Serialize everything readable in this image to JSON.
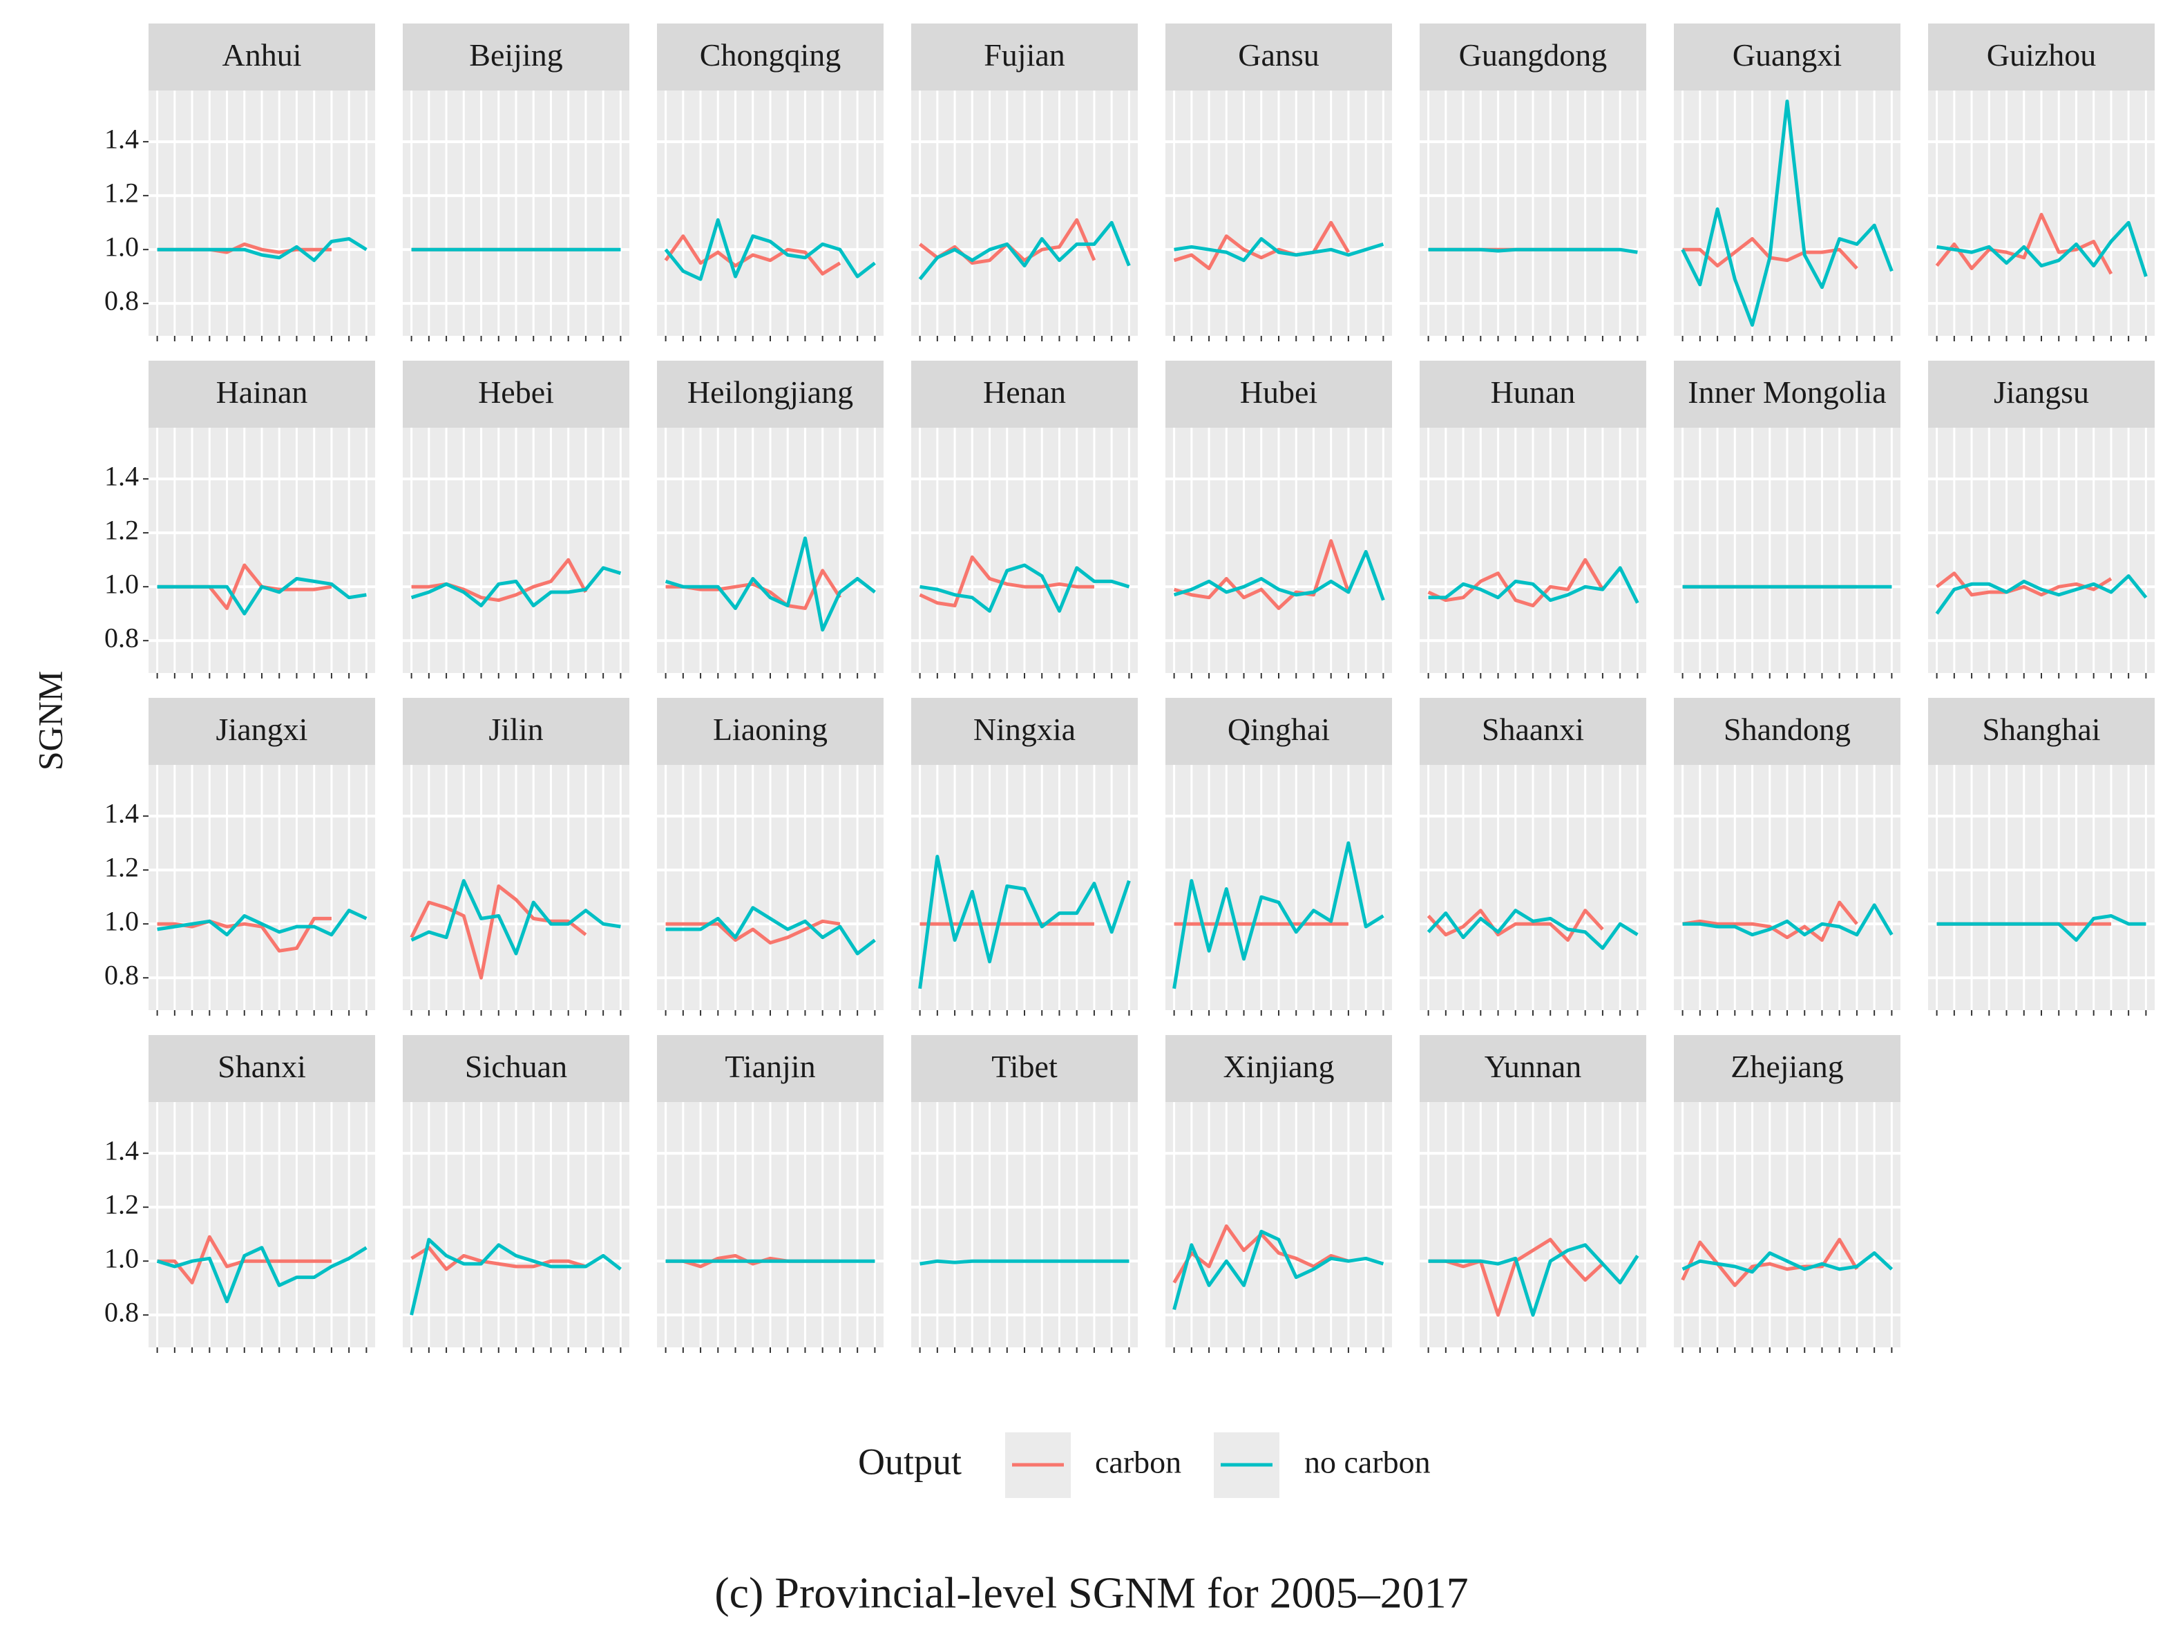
{
  "chart_data": {
    "type": "line",
    "ylabel": "SGNM",
    "legend_title": "Output",
    "caption": "(c) Provincial-level SGNM for 2005–2017",
    "x": [
      1,
      2,
      3,
      4,
      5,
      6,
      7,
      8,
      9,
      10,
      11,
      12,
      13
    ],
    "xlim": [
      0.5,
      13.5
    ],
    "xticks": [
      1,
      2,
      3,
      4,
      5,
      6,
      7,
      8,
      9,
      10,
      11,
      12,
      13
    ],
    "ylim": [
      0.68,
      1.59
    ],
    "yticks": [
      0.8,
      {
        "value": 1,
        "label": "1.0"
      },
      1.2,
      1.4
    ],
    "grid": true,
    "series": [
      {
        "name": "carbon",
        "color": "#F8766D"
      },
      {
        "name": "no carbon",
        "color": "#00BFC4"
      }
    ],
    "panels": [
      {
        "title": "Anhui",
        "values": [
          [
            1,
            1,
            1,
            1,
            0.99,
            1.02,
            1.0,
            0.99,
            1.0,
            1.0,
            1.0,
            null,
            null
          ],
          [
            1,
            1,
            1,
            1,
            1,
            1,
            0.98,
            0.97,
            1.01,
            0.96,
            1.03,
            1.04,
            1.0
          ]
        ]
      },
      {
        "title": "Beijing",
        "values": [
          [
            1,
            1,
            1,
            1,
            1,
            1,
            1,
            1,
            1,
            1,
            1,
            null,
            null
          ],
          [
            1,
            1,
            1,
            1,
            1,
            1,
            1,
            1,
            1,
            1,
            1,
            1,
            1
          ]
        ]
      },
      {
        "title": "Chongqing",
        "values": [
          [
            0.96,
            1.05,
            0.95,
            0.99,
            0.94,
            0.98,
            0.96,
            1.0,
            0.99,
            0.91,
            0.95,
            null,
            null
          ],
          [
            1.0,
            0.92,
            0.89,
            1.11,
            0.9,
            1.05,
            1.03,
            0.98,
            0.97,
            1.02,
            1.0,
            0.9,
            0.95
          ]
        ]
      },
      {
        "title": "Fujian",
        "values": [
          [
            1.02,
            0.97,
            1.01,
            0.95,
            0.96,
            1.02,
            0.96,
            1.0,
            1.01,
            1.11,
            0.96,
            null,
            null
          ],
          [
            0.89,
            0.97,
            1.0,
            0.96,
            1.0,
            1.02,
            0.94,
            1.04,
            0.96,
            1.02,
            1.02,
            1.1,
            0.94
          ]
        ]
      },
      {
        "title": "Gansu",
        "values": [
          [
            0.96,
            0.98,
            0.93,
            1.05,
            1.0,
            0.97,
            1.0,
            0.98,
            0.99,
            1.1,
            0.99,
            null,
            null
          ],
          [
            1.0,
            1.01,
            1.0,
            0.99,
            0.96,
            1.04,
            0.99,
            0.98,
            0.99,
            1.0,
            0.98,
            1.0,
            1.02
          ]
        ]
      },
      {
        "title": "Guangdong",
        "values": [
          [
            1,
            1,
            1,
            1,
            1,
            1,
            1,
            1,
            1,
            1,
            1,
            null,
            null
          ],
          [
            1,
            1,
            1,
            1,
            0.995,
            1,
            1,
            1,
            1,
            1,
            1,
            1,
            0.99
          ]
        ]
      },
      {
        "title": "Guangxi",
        "values": [
          [
            1.0,
            1.0,
            0.94,
            0.99,
            1.04,
            0.97,
            0.96,
            0.99,
            0.99,
            1.0,
            0.93,
            null,
            null
          ],
          [
            1.0,
            0.87,
            1.15,
            0.89,
            0.72,
            0.97,
            1.55,
            0.98,
            0.86,
            1.04,
            1.02,
            1.09,
            0.92
          ]
        ]
      },
      {
        "title": "Guizhou",
        "values": [
          [
            0.94,
            1.02,
            0.93,
            1.0,
            0.99,
            0.97,
            1.13,
            0.99,
            1.0,
            1.03,
            0.91,
            null,
            null
          ],
          [
            1.01,
            1.0,
            0.99,
            1.01,
            0.95,
            1.01,
            0.94,
            0.96,
            1.02,
            0.94,
            1.03,
            1.1,
            0.9
          ]
        ]
      },
      {
        "title": "Hainan",
        "values": [
          [
            1,
            1,
            1,
            1,
            0.92,
            1.08,
            1.0,
            0.99,
            0.99,
            0.99,
            1.0,
            null,
            null
          ],
          [
            1,
            1,
            1,
            1,
            1,
            0.9,
            1.0,
            0.98,
            1.03,
            1.02,
            1.01,
            0.96,
            0.97
          ]
        ]
      },
      {
        "title": "Hebei",
        "values": [
          [
            1.0,
            1.0,
            1.01,
            0.99,
            0.96,
            0.95,
            0.97,
            1.0,
            1.02,
            1.1,
            0.98,
            null,
            null
          ],
          [
            0.96,
            0.98,
            1.01,
            0.98,
            0.93,
            1.01,
            1.02,
            0.93,
            0.98,
            0.98,
            0.99,
            1.07,
            1.05
          ]
        ]
      },
      {
        "title": "Heilongjiang",
        "values": [
          [
            1.0,
            1.0,
            0.99,
            0.99,
            1.0,
            1.01,
            0.98,
            0.93,
            0.92,
            1.06,
            0.96,
            null,
            null
          ],
          [
            1.02,
            1.0,
            1.0,
            1.0,
            0.92,
            1.03,
            0.96,
            0.93,
            1.18,
            0.84,
            0.98,
            1.03,
            0.98
          ]
        ]
      },
      {
        "title": "Henan",
        "values": [
          [
            0.97,
            0.94,
            0.93,
            1.11,
            1.03,
            1.01,
            1.0,
            1.0,
            1.01,
            1.0,
            1.0,
            null,
            null
          ],
          [
            1.0,
            0.99,
            0.97,
            0.96,
            0.91,
            1.06,
            1.08,
            1.04,
            0.91,
            1.07,
            1.02,
            1.02,
            1.0
          ]
        ]
      },
      {
        "title": "Hubei",
        "values": [
          [
            0.99,
            0.97,
            0.96,
            1.03,
            0.96,
            0.99,
            0.92,
            0.98,
            0.97,
            1.17,
            0.98,
            null,
            null
          ],
          [
            0.97,
            0.99,
            1.02,
            0.98,
            1.0,
            1.03,
            0.99,
            0.97,
            0.98,
            1.02,
            0.98,
            1.13,
            0.95
          ]
        ]
      },
      {
        "title": "Hunan",
        "values": [
          [
            0.98,
            0.95,
            0.96,
            1.02,
            1.05,
            0.95,
            0.93,
            1.0,
            0.99,
            1.1,
            0.99,
            null,
            null
          ],
          [
            0.96,
            0.96,
            1.01,
            0.99,
            0.96,
            1.02,
            1.01,
            0.95,
            0.97,
            1.0,
            0.99,
            1.07,
            0.94
          ]
        ]
      },
      {
        "title": "Inner Mongolia",
        "values": [
          [
            1,
            1,
            1,
            1,
            1,
            1,
            1,
            1,
            1,
            1,
            1,
            null,
            null
          ],
          [
            1,
            1,
            1,
            1,
            1,
            1,
            1,
            1,
            1,
            1,
            1,
            1,
            1
          ]
        ]
      },
      {
        "title": "Jiangsu",
        "values": [
          [
            1.0,
            1.05,
            0.97,
            0.98,
            0.98,
            1.0,
            0.97,
            1.0,
            1.01,
            0.99,
            1.03,
            null,
            null
          ],
          [
            0.9,
            0.99,
            1.01,
            1.01,
            0.98,
            1.02,
            0.99,
            0.97,
            0.99,
            1.01,
            0.98,
            1.04,
            0.96
          ]
        ]
      },
      {
        "title": "Jiangxi",
        "values": [
          [
            1.0,
            1.0,
            0.99,
            1.01,
            0.99,
            1.0,
            0.99,
            0.9,
            0.91,
            1.02,
            1.02,
            null,
            null
          ],
          [
            0.98,
            0.99,
            1.0,
            1.01,
            0.96,
            1.03,
            1.0,
            0.97,
            0.99,
            0.99,
            0.96,
            1.05,
            1.02
          ]
        ]
      },
      {
        "title": "Jilin",
        "values": [
          [
            0.95,
            1.08,
            1.06,
            1.03,
            0.8,
            1.14,
            1.09,
            1.02,
            1.01,
            1.01,
            0.96,
            null,
            null
          ],
          [
            0.94,
            0.97,
            0.95,
            1.16,
            1.02,
            1.03,
            0.89,
            1.08,
            1.0,
            1.0,
            1.05,
            1.0,
            0.99
          ]
        ]
      },
      {
        "title": "Liaoning",
        "values": [
          [
            1.0,
            1.0,
            1.0,
            1.0,
            0.94,
            0.98,
            0.93,
            0.95,
            0.98,
            1.01,
            1.0,
            null,
            null
          ],
          [
            0.98,
            0.98,
            0.98,
            1.02,
            0.95,
            1.06,
            1.02,
            0.98,
            1.01,
            0.95,
            0.99,
            0.89,
            0.94
          ]
        ]
      },
      {
        "title": "Ningxia",
        "values": [
          [
            1,
            1,
            1,
            1,
            1,
            1,
            1,
            1,
            1,
            1,
            1,
            null,
            null
          ],
          [
            0.76,
            1.25,
            0.94,
            1.12,
            0.86,
            1.14,
            1.13,
            0.99,
            1.04,
            1.04,
            1.15,
            0.97,
            1.16
          ]
        ]
      },
      {
        "title": "Qinghai",
        "values": [
          [
            1,
            1,
            1,
            1,
            1,
            1,
            1,
            1,
            1,
            1,
            1,
            null,
            null
          ],
          [
            0.76,
            1.16,
            0.9,
            1.13,
            0.87,
            1.1,
            1.08,
            0.97,
            1.05,
            1.01,
            1.3,
            0.99,
            1.03
          ]
        ]
      },
      {
        "title": "Shaanxi",
        "values": [
          [
            1.03,
            0.96,
            0.99,
            1.05,
            0.96,
            1.0,
            1.0,
            1.0,
            0.94,
            1.05,
            0.98,
            null,
            null
          ],
          [
            0.97,
            1.04,
            0.95,
            1.02,
            0.97,
            1.05,
            1.01,
            1.02,
            0.98,
            0.97,
            0.91,
            1.0,
            0.96
          ]
        ]
      },
      {
        "title": "Shandong",
        "values": [
          [
            1.0,
            1.01,
            1.0,
            1.0,
            1.0,
            0.99,
            0.95,
            0.99,
            0.94,
            1.08,
            1.0,
            null,
            null
          ],
          [
            1.0,
            1.0,
            0.99,
            0.99,
            0.96,
            0.98,
            1.01,
            0.96,
            1.0,
            0.99,
            0.96,
            1.07,
            0.96
          ]
        ]
      },
      {
        "title": "Shanghai",
        "values": [
          [
            1,
            1,
            1,
            1,
            1,
            1,
            1,
            1,
            1,
            1,
            1,
            null,
            null
          ],
          [
            1,
            1,
            1,
            1,
            1,
            1,
            1,
            1,
            0.94,
            1.02,
            1.03,
            1.0,
            1.0
          ]
        ]
      },
      {
        "title": "Shanxi",
        "values": [
          [
            1.0,
            1.0,
            0.92,
            1.09,
            0.98,
            1.0,
            1.0,
            1.0,
            1.0,
            1.0,
            1.0,
            null,
            null
          ],
          [
            1.0,
            0.98,
            1.0,
            1.01,
            0.85,
            1.02,
            1.05,
            0.91,
            0.94,
            0.94,
            0.98,
            1.01,
            1.05
          ]
        ]
      },
      {
        "title": "Sichuan",
        "values": [
          [
            1.01,
            1.05,
            0.97,
            1.02,
            1.0,
            0.99,
            0.98,
            0.98,
            1.0,
            1.0,
            0.98,
            null,
            null
          ],
          [
            0.8,
            1.08,
            1.02,
            0.99,
            0.99,
            1.06,
            1.02,
            1.0,
            0.98,
            0.98,
            0.98,
            1.02,
            0.97
          ]
        ]
      },
      {
        "title": "Tianjin",
        "values": [
          [
            1.0,
            1.0,
            0.98,
            1.01,
            1.02,
            0.99,
            1.01,
            1.0,
            1.0,
            1.0,
            1.0,
            null,
            null
          ],
          [
            1,
            1,
            1,
            1,
            1,
            1,
            1,
            1,
            1,
            1,
            1,
            1,
            1
          ]
        ]
      },
      {
        "title": "Tibet",
        "values": [
          [
            null,
            null,
            null,
            null,
            null,
            null,
            null,
            null,
            null,
            null,
            null,
            null,
            null
          ],
          [
            0.99,
            1.0,
            0.995,
            1,
            1,
            1,
            1,
            1,
            1,
            1,
            1,
            1,
            1
          ]
        ]
      },
      {
        "title": "Xinjiang",
        "values": [
          [
            0.92,
            1.03,
            0.98,
            1.13,
            1.04,
            1.1,
            1.03,
            1.01,
            0.98,
            1.02,
            1.0,
            null,
            null
          ],
          [
            0.82,
            1.06,
            0.91,
            1.0,
            0.91,
            1.11,
            1.08,
            0.94,
            0.97,
            1.01,
            1.0,
            1.01,
            0.99
          ]
        ]
      },
      {
        "title": "Yunnan",
        "values": [
          [
            1.0,
            1.0,
            0.98,
            1.0,
            0.8,
            1.0,
            1.04,
            1.08,
            1.0,
            0.93,
            0.99,
            null,
            null
          ],
          [
            1.0,
            1.0,
            1.0,
            1.0,
            0.99,
            1.01,
            0.8,
            1.0,
            1.04,
            1.06,
            0.99,
            0.92,
            1.02
          ]
        ]
      },
      {
        "title": "Zhejiang",
        "values": [
          [
            0.93,
            1.07,
            0.99,
            0.91,
            0.98,
            0.99,
            0.97,
            0.98,
            0.98,
            1.08,
            0.97,
            null,
            null
          ],
          [
            0.97,
            1.0,
            0.99,
            0.98,
            0.96,
            1.03,
            1.0,
            0.97,
            0.99,
            0.97,
            0.98,
            1.03,
            0.97
          ]
        ]
      }
    ]
  }
}
